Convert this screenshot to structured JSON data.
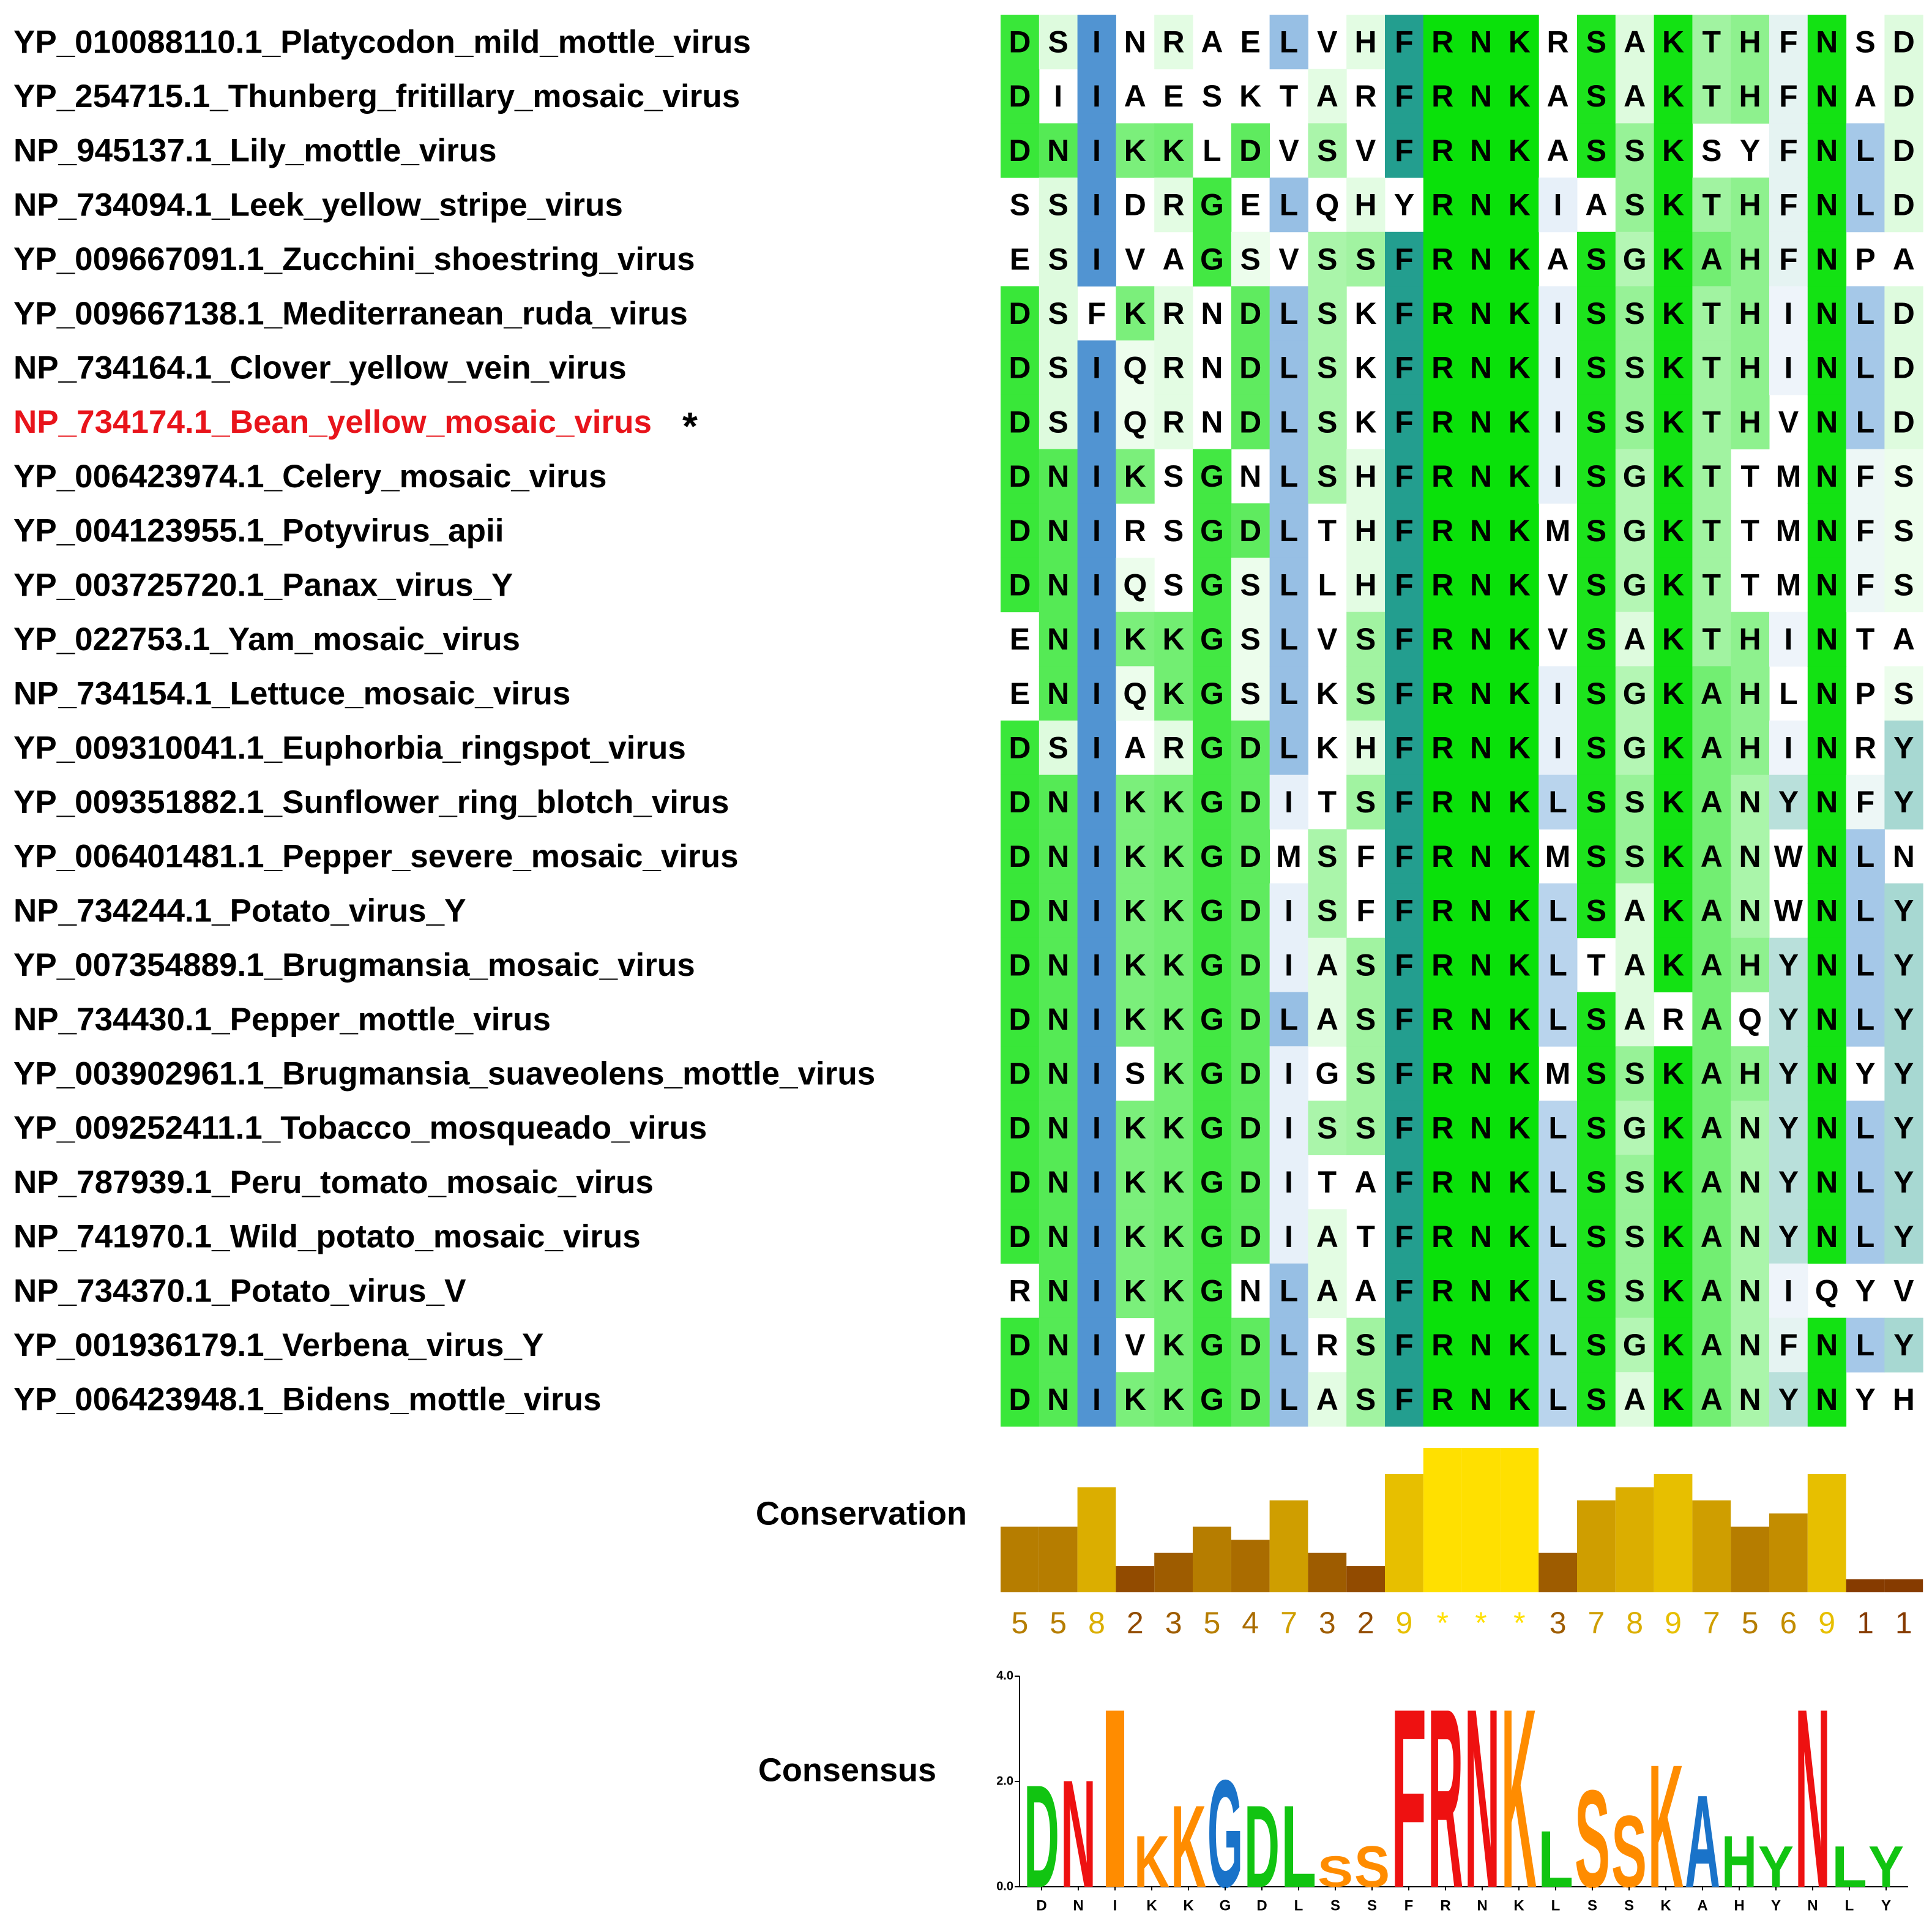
{
  "alignment": {
    "sequences": [
      {
        "name": "YP_010088110.1_Platycodon_mild_mottle_virus",
        "residues": "DSINRAELVHFRNKRSAKTHFNSD"
      },
      {
        "name": "YP_254715.1_Thunberg_fritillary_mosaic_virus",
        "residues": "DIIAESKTARFRNKASAKTHFNAD"
      },
      {
        "name": "NP_945137.1_Lily_mottle_virus",
        "residues": "DNIKKLDVSVFRNKASSKSYFNLD"
      },
      {
        "name": "NP_734094.1_Leek_yellow_stripe_virus",
        "residues": "SSIDRGELQHYRNKIASKTHFNLD"
      },
      {
        "name": "YP_009667091.1_Zucchini_shoestring_virus",
        "residues": "ESIVAGSVSSFRNKASGKAHFNPA"
      },
      {
        "name": "YP_009667138.1_Mediterranean_ruda_virus",
        "residues": "DSFKRNDLSKFRNKISSKTHINLD"
      },
      {
        "name": "NP_734164.1_Clover_yellow_vein_virus",
        "residues": "DSIQRNDLSKFRNKISSKTHINLD"
      },
      {
        "name": "NP_734174.1_Bean_yellow_mosaic_virus",
        "residues": "DSIQRNDLSKFRNKISSKTHVNLD",
        "color": "#e8141b",
        "marker": "*"
      },
      {
        "name": "YP_006423974.1_Celery_mosaic_virus",
        "residues": "DNIKSGNLSHFRNKISGKTTMNFS"
      },
      {
        "name": "YP_004123955.1_Potyvirus_apii",
        "residues": "DNIRSGDLTHFRNKMSGKTTMNFS"
      },
      {
        "name": "YP_003725720.1_Panax_virus_Y",
        "residues": "DNIQSGSLLHFRNKVSGKTTMNFS"
      },
      {
        "name": "YP_022753.1_Yam_mosaic_virus",
        "residues": "ENIKKGSLVSFRNKVSAKTHINTA"
      },
      {
        "name": "NP_734154.1_Lettuce_mosaic_virus",
        "residues": "ENIQKGSLKSFRNKISGKAHLNPS"
      },
      {
        "name": "YP_009310041.1_Euphorbia_ringspot_virus",
        "residues": "DSIARGDLKHFRNKISGKAHINRY"
      },
      {
        "name": "YP_009351882.1_Sunflower_ring_blotch_virus",
        "residues": "DNIKKGDITSFRNKLSSKANYNFY"
      },
      {
        "name": "YP_006401481.1_Pepper_severe_mosaic_virus",
        "residues": "DNIKKGDMSFFRNKMSSKANWNLN"
      },
      {
        "name": "NP_734244.1_Potato_virus_Y",
        "residues": "DNIKKGDISFFRNKLSAKANWNLY"
      },
      {
        "name": "YP_007354889.1_Brugmansia_mosaic_virus",
        "residues": "DNIKKGDIASFRNKLTAKAHYNLY"
      },
      {
        "name": "NP_734430.1_Pepper_mottle_virus",
        "residues": "DNIKKGDLASFRNKLSARAQYNLY"
      },
      {
        "name": "YP_003902961.1_Brugmansia_suaveolens_mottle_virus",
        "residues": "DNISKGDIGSFRNKMSSKAHYNYY"
      },
      {
        "name": "YP_009252411.1_Tobacco_mosqueado_virus",
        "residues": "DNIKKGDISSFRNKLSGKANYNLY"
      },
      {
        "name": "NP_787939.1_Peru_tomato_mosaic_virus",
        "residues": "DNIKKGDITAFRNKLSSKANYNLY"
      },
      {
        "name": "NP_741970.1_Wild_potato_mosaic_virus",
        "residues": "DNIKKGDIATFRNKLSSKANYNLY"
      },
      {
        "name": "NP_734370.1_Potato_virus_V",
        "residues": "RNIKKGNLAAFRNKLSSKANIQYV"
      },
      {
        "name": "YP_001936179.1_Verbena_virus_Y",
        "residues": "DNIVKGDLRSFRNKLSGKANFNLY"
      },
      {
        "name": "YP_006423948.1_Bidens_mottle_virus",
        "residues": "DNIKKGDLASFRNKLSAKANYNYH"
      }
    ]
  },
  "conservation": {
    "label": "Conservation",
    "max": 11,
    "scores": [
      5,
      5,
      8,
      2,
      3,
      5,
      4,
      7,
      3,
      2,
      9,
      {
        "value": 11,
        "label": "*"
      },
      {
        "value": 11,
        "label": "*"
      },
      {
        "value": 11,
        "label": "*"
      },
      3,
      7,
      8,
      9,
      7,
      5,
      6,
      9,
      1,
      1
    ]
  },
  "consensus": {
    "label": "Consensus",
    "ylim": [
      0,
      4
    ],
    "yticks": [
      {
        "value": 0,
        "label": "0.0"
      },
      {
        "value": 2,
        "label": "2.0"
      },
      {
        "value": 4,
        "label": "4.0"
      }
    ],
    "letters": "DNIKKGDLSSFRNKLSSKAHYNLY",
    "heights": [
      2.0,
      2.1,
      3.5,
      1.0,
      1.6,
      2.1,
      1.6,
      1.6,
      0.6,
      0.8,
      3.5,
      3.5,
      3.5,
      3.5,
      1.1,
      1.9,
      1.4,
      2.4,
      1.8,
      1.0,
      0.8,
      3.5,
      0.8,
      0.8
    ],
    "letter_colors": {
      "D": "#11c411",
      "N": "#ee1111",
      "I": "#ff8c00",
      "K": "#ff8c00",
      "G": "#1a73c9",
      "L": "#11c411",
      "S": "#ff8c00",
      "F": "#ee1111",
      "R": "#ee1111",
      "A": "#1a73c9",
      "H": "#11c411",
      "Y": "#11c411"
    }
  }
}
